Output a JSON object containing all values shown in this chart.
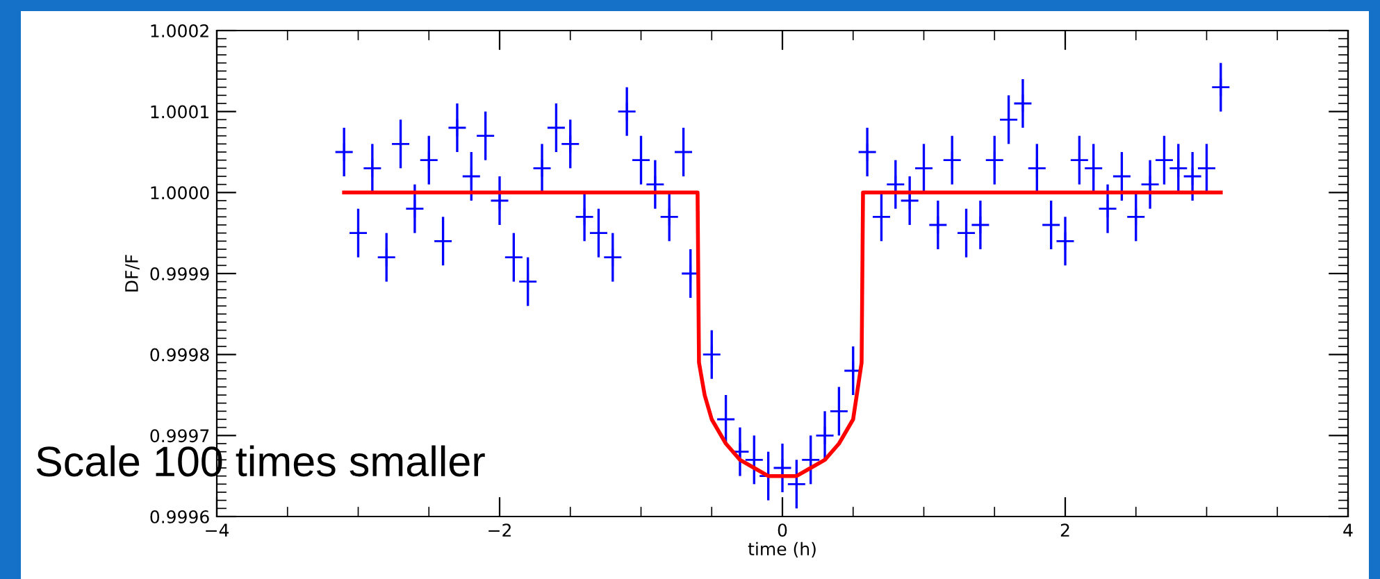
{
  "chart_data": {
    "type": "scatter",
    "xlabel": "time (h)",
    "ylabel": "DF/F",
    "annotations": [
      "Scale 100 times smaller"
    ],
    "xlim": [
      -4,
      4
    ],
    "xticks": [
      {
        "value": -4,
        "label": "−4"
      },
      {
        "value": -2,
        "label": "−2"
      },
      0,
      2,
      4
    ],
    "ylim": [
      0.9996,
      1.0002
    ],
    "yticks": [
      {
        "value": 0.9996,
        "label": "0.9996"
      },
      {
        "value": 0.9997,
        "label": "0.9997"
      },
      {
        "value": 0.9998,
        "label": "0.9998"
      },
      {
        "value": 0.9999,
        "label": "0.9999"
      },
      {
        "value": 1.0,
        "label": "1.0000"
      },
      {
        "value": 1.0001,
        "label": "1.0001"
      },
      {
        "value": 1.0002,
        "label": "1.0002"
      }
    ],
    "grid": false,
    "legend": false,
    "series": [
      {
        "type": "scatter",
        "color": "#0000ff",
        "marker": "cross",
        "x": [
          -3.1,
          -3.0,
          -2.9,
          -2.8,
          -2.7,
          -2.6,
          -2.5,
          -2.4,
          -2.3,
          -2.2,
          -2.1,
          -2.0,
          -1.9,
          -1.8,
          -1.7,
          -1.6,
          -1.5,
          -1.4,
          -1.3,
          -1.2,
          -1.1,
          -1.0,
          -0.9,
          -0.8,
          -0.7,
          -0.65,
          -0.5,
          -0.4,
          -0.3,
          -0.2,
          -0.1,
          0.0,
          0.1,
          0.2,
          0.3,
          0.4,
          0.5,
          0.6,
          0.7,
          0.8,
          0.9,
          1.0,
          1.1,
          1.2,
          1.3,
          1.4,
          1.5,
          1.6,
          1.7,
          1.8,
          1.9,
          2.0,
          2.1,
          2.2,
          2.3,
          2.4,
          2.5,
          2.6,
          2.7,
          2.8,
          2.9,
          3.0,
          3.1
        ],
        "values": [
          1.00005,
          0.99995,
          1.00003,
          0.99992,
          1.00006,
          0.99998,
          1.00004,
          0.99994,
          1.00008,
          1.00002,
          1.00007,
          0.99999,
          0.99992,
          0.99989,
          1.00003,
          1.00008,
          1.00006,
          0.99997,
          0.99995,
          0.99992,
          1.0001,
          1.00004,
          1.00001,
          0.99997,
          1.00005,
          0.9999,
          0.9998,
          0.99972,
          0.99968,
          0.99967,
          0.99965,
          0.99966,
          0.99964,
          0.99967,
          0.9997,
          0.99973,
          0.99978,
          1.00005,
          0.99997,
          1.00001,
          0.99999,
          1.00003,
          0.99996,
          1.00004,
          0.99995,
          0.99996,
          1.00004,
          1.00009,
          1.00011,
          1.00003,
          0.99996,
          0.99994,
          1.00004,
          1.00003,
          0.99998,
          1.00002,
          0.99997,
          1.00001,
          1.00004,
          1.00003,
          1.00002,
          1.00003,
          1.00013
        ],
        "errors": [
          3e-05,
          3e-05,
          3e-05,
          3e-05,
          3e-05,
          3e-05,
          3e-05,
          3e-05,
          3e-05,
          3e-05,
          3e-05,
          3e-05,
          3e-05,
          3e-05,
          3e-05,
          3e-05,
          3e-05,
          3e-05,
          3e-05,
          3e-05,
          3e-05,
          3e-05,
          3e-05,
          3e-05,
          3e-05,
          3e-05,
          3e-05,
          3e-05,
          3e-05,
          3e-05,
          3e-05,
          3e-05,
          3e-05,
          3e-05,
          3e-05,
          3e-05,
          3e-05,
          3e-05,
          3e-05,
          3e-05,
          3e-05,
          3e-05,
          3e-05,
          3e-05,
          3e-05,
          3e-05,
          3e-05,
          3e-05,
          3e-05,
          3e-05,
          3e-05,
          3e-05,
          3e-05,
          3e-05,
          3e-05,
          3e-05,
          3e-05,
          3e-05,
          3e-05,
          3e-05,
          3e-05,
          3e-05,
          3e-05
        ]
      },
      {
        "type": "line",
        "color": "#ff0000",
        "line_style": "solid",
        "marker": "none",
        "x": [
          -3.1,
          -0.6,
          -0.59,
          -0.55,
          -0.5,
          -0.4,
          -0.3,
          -0.2,
          -0.1,
          0.0,
          0.1,
          0.2,
          0.3,
          0.4,
          0.5,
          0.56,
          0.57,
          3.1
        ],
        "values": [
          1.0,
          1.0,
          0.99979,
          0.99975,
          0.99972,
          0.99969,
          0.99967,
          0.99966,
          0.99965,
          0.99965,
          0.99965,
          0.99966,
          0.99967,
          0.99969,
          0.99972,
          0.99979,
          1.0,
          1.0
        ]
      }
    ]
  }
}
